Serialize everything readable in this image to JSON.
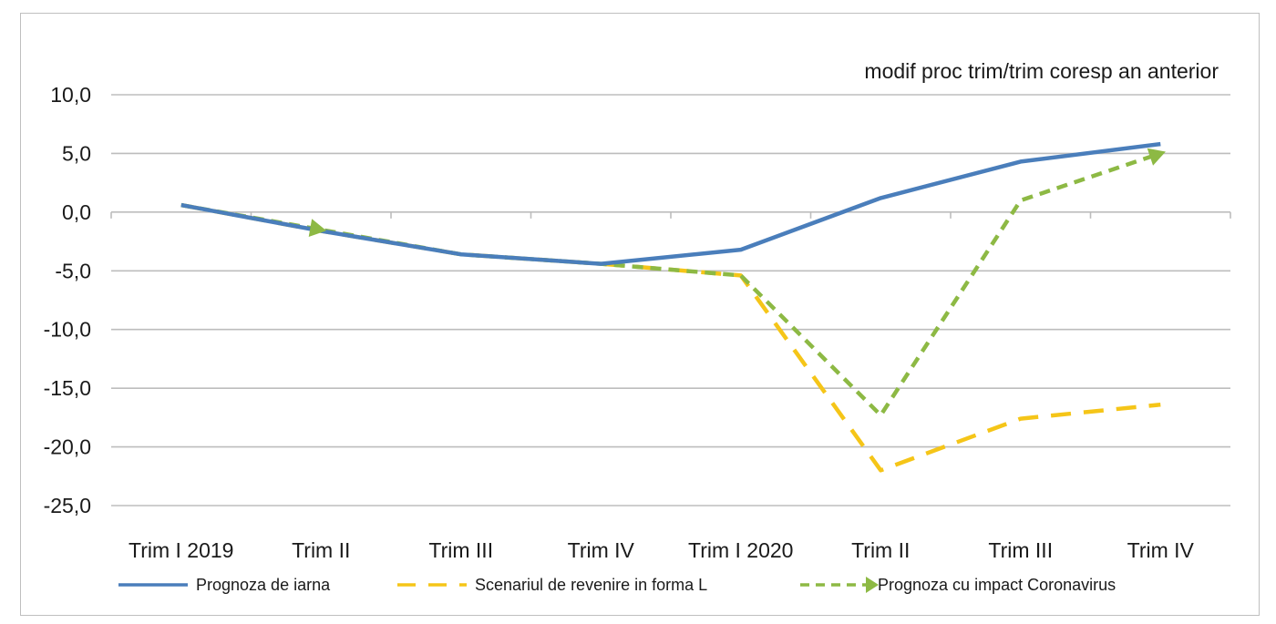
{
  "chart_data": {
    "type": "line",
    "title": "",
    "unit_label": "modif proc trim/trim coresp an anterior",
    "categories": [
      "Trim I 2019",
      "Trim II",
      "Trim III",
      "Trim IV",
      "Trim I 2020",
      "Trim II",
      "Trim III",
      "Trim IV"
    ],
    "yticks": [
      "10,0",
      "5,0",
      "0,0",
      "-5,0",
      "-10,0",
      "-15,0",
      "-20,0",
      "-25,0"
    ],
    "ylim": [
      -25,
      10
    ],
    "grid": true,
    "legend_position": "bottom",
    "series": [
      {
        "name": "Prognoza de iarna",
        "color": "#4a7ebb",
        "style": "solid",
        "values": [
          0.6,
          -1.6,
          -3.6,
          -4.4,
          -3.2,
          1.2,
          4.3,
          5.8
        ]
      },
      {
        "name": "Scenariul de revenire in forma L",
        "color": "#f5c518",
        "style": "dashed",
        "values": [
          0.6,
          -1.6,
          -3.6,
          -4.4,
          -5.4,
          -22.0,
          -17.6,
          -16.4
        ]
      },
      {
        "name": "Prognoza cu impact Coronavirus",
        "color": "#8db944",
        "style": "dotted-arrow",
        "values": [
          0.6,
          -1.5,
          -3.6,
          -4.4,
          -5.4,
          -17.3,
          1.0,
          5.0
        ]
      }
    ]
  }
}
